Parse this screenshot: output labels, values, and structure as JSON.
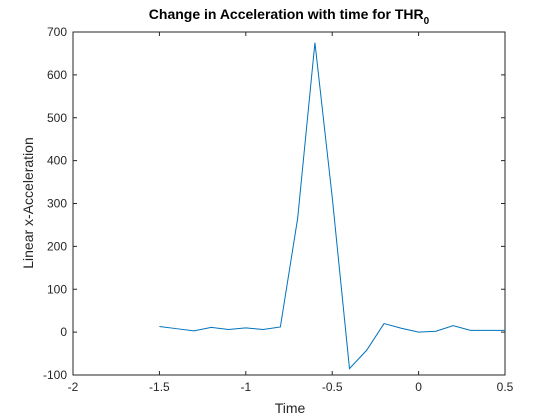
{
  "chart_data": {
    "type": "line",
    "title": "Change in Acceleration with time for THR",
    "title_subscript": "0",
    "xlabel": "Time",
    "ylabel": "Linear x-Acceleration",
    "xlim": [
      -2,
      0.5
    ],
    "ylim": [
      -100,
      700
    ],
    "xticks": [
      -2,
      -1.5,
      -1,
      -0.5,
      0,
      0.5
    ],
    "xtick_labels": [
      "-2",
      "-1.5",
      "-1",
      "-0.5",
      "0",
      "0.5"
    ],
    "yticks": [
      -100,
      0,
      100,
      200,
      300,
      400,
      500,
      600,
      700
    ],
    "ytick_labels": [
      "-100",
      "0",
      "100",
      "200",
      "300",
      "400",
      "500",
      "600",
      "700"
    ],
    "grid": false,
    "box": true,
    "series": [
      {
        "color": "#0072bd",
        "x": [
          -1.5,
          -1.4,
          -1.3,
          -1.2,
          -1.1,
          -1.0,
          -0.9,
          -0.8,
          -0.7,
          -0.6,
          -0.5,
          -0.4,
          -0.3,
          -0.2,
          -0.1,
          0.0,
          0.1,
          0.2,
          0.3,
          0.4,
          0.5
        ],
        "y": [
          13,
          8,
          3,
          11,
          6,
          10,
          6,
          12,
          265,
          675,
          315,
          -85,
          -42,
          20,
          9,
          0,
          2,
          15,
          4,
          4,
          4
        ]
      }
    ]
  }
}
